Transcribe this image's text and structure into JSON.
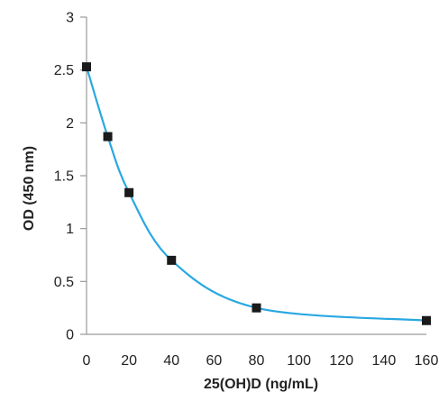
{
  "chart_data": {
    "type": "line",
    "title": "",
    "xlabel": "25(OH)D (ng/mL)",
    "ylabel": "OD (450 nm)",
    "xlim": [
      0,
      160
    ],
    "ylim": [
      0,
      3
    ],
    "xticks": [
      "0",
      "20",
      "40",
      "60",
      "80",
      "100",
      "120",
      "140",
      "160"
    ],
    "yticks": [
      "0",
      "0.5",
      "1",
      "1.5",
      "2",
      "2.5",
      "3"
    ],
    "grid": false,
    "legend": "none",
    "series": [
      {
        "marker": "square",
        "line_style": "smooth",
        "line_color": "#29a8e0",
        "marker_color": "#1a1a1a",
        "points": [
          {
            "x": 0,
            "y": 2.53
          },
          {
            "x": 10,
            "y": 1.87
          },
          {
            "x": 20,
            "y": 1.34
          },
          {
            "x": 40,
            "y": 0.7
          },
          {
            "x": 80,
            "y": 0.25
          },
          {
            "x": 160,
            "y": 0.13
          }
        ]
      }
    ]
  }
}
